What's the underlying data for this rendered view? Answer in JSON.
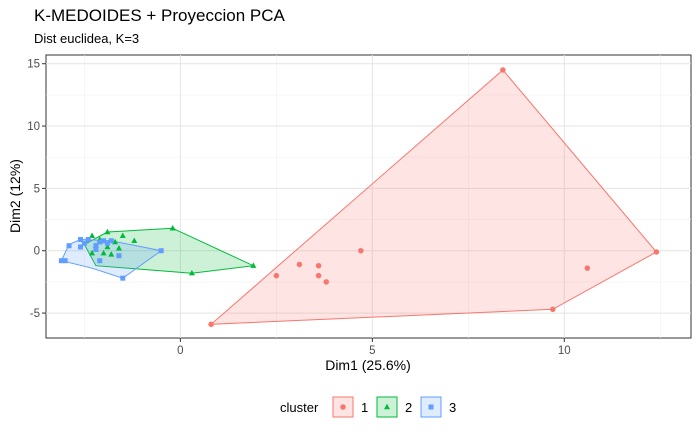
{
  "chart_data": {
    "type": "scatter",
    "title": "K-MEDOIDES + Proyeccion PCA",
    "subtitle": "Dist euclidea, K=3",
    "xlabel": "Dim1 (25.6%)",
    "ylabel": "Dim2 (12%)",
    "xlim": [
      -3.5,
      13.3
    ],
    "ylim": [
      -7.0,
      15.7
    ],
    "xticks": [
      0,
      5,
      10
    ],
    "yticks": [
      -5,
      0,
      5,
      10,
      15
    ],
    "grid": true,
    "legend": {
      "title": "cluster",
      "position": "bottom"
    },
    "series": [
      {
        "name": "1",
        "color": "#F8766D",
        "marker": "circle",
        "points": [
          [
            8.4,
            14.5
          ],
          [
            4.7,
            0.0
          ],
          [
            3.1,
            -1.1
          ],
          [
            2.5,
            -2.0
          ],
          [
            3.6,
            -1.2
          ],
          [
            3.6,
            -2.0
          ],
          [
            3.8,
            -2.5
          ],
          [
            10.6,
            -1.4
          ],
          [
            9.7,
            -4.7
          ],
          [
            12.4,
            -0.1
          ],
          [
            0.8,
            -5.9
          ]
        ],
        "hull": [
          [
            8.4,
            14.5
          ],
          [
            12.4,
            -0.1
          ],
          [
            9.7,
            -4.7
          ],
          [
            0.8,
            -5.9
          ]
        ]
      },
      {
        "name": "2",
        "color": "#00BA38",
        "marker": "triangle",
        "points": [
          [
            -0.2,
            1.8
          ],
          [
            -1.9,
            1.5
          ],
          [
            -1.5,
            1.2
          ],
          [
            -1.2,
            0.8
          ],
          [
            -1.7,
            0.7
          ],
          [
            -1.9,
            0.3
          ],
          [
            -2.0,
            -0.2
          ],
          [
            -2.3,
            -0.2
          ],
          [
            -2.1,
            0.9
          ],
          [
            -2.3,
            1.2
          ],
          [
            -1.8,
            -0.3
          ],
          [
            1.9,
            -1.2
          ],
          [
            0.3,
            -1.8
          ],
          [
            -2.2,
            0.4
          ],
          [
            -1.6,
            0.2
          ]
        ],
        "hull": [
          [
            -0.2,
            1.8
          ],
          [
            1.9,
            -1.2
          ],
          [
            0.3,
            -1.8
          ],
          [
            -2.2,
            -1.2
          ],
          [
            -2.5,
            0.5
          ],
          [
            -1.9,
            1.5
          ]
        ]
      },
      {
        "name": "3",
        "color": "#619CFF",
        "marker": "square",
        "points": [
          [
            -3.1,
            -0.8
          ],
          [
            -3.0,
            -0.8
          ],
          [
            -2.6,
            0.9
          ],
          [
            -2.5,
            0.6
          ],
          [
            -2.4,
            0.9
          ],
          [
            -2.2,
            0.4
          ],
          [
            -2.1,
            0.7
          ],
          [
            -2.0,
            0.8
          ],
          [
            -1.9,
            0.6
          ],
          [
            -1.8,
            0.8
          ],
          [
            -2.2,
            0.1
          ],
          [
            -2.1,
            -0.8
          ],
          [
            -1.6,
            -0.4
          ],
          [
            -1.5,
            -2.2
          ],
          [
            -0.5,
            0.0
          ],
          [
            -2.9,
            0.4
          ],
          [
            -2.6,
            0.3
          ]
        ],
        "hull": [
          [
            -2.6,
            0.9
          ],
          [
            -1.8,
            0.8
          ],
          [
            -0.5,
            0.0
          ],
          [
            -1.5,
            -2.2
          ],
          [
            -2.3,
            -1.4
          ],
          [
            -3.1,
            -0.8
          ],
          [
            -2.9,
            0.5
          ]
        ]
      }
    ]
  }
}
